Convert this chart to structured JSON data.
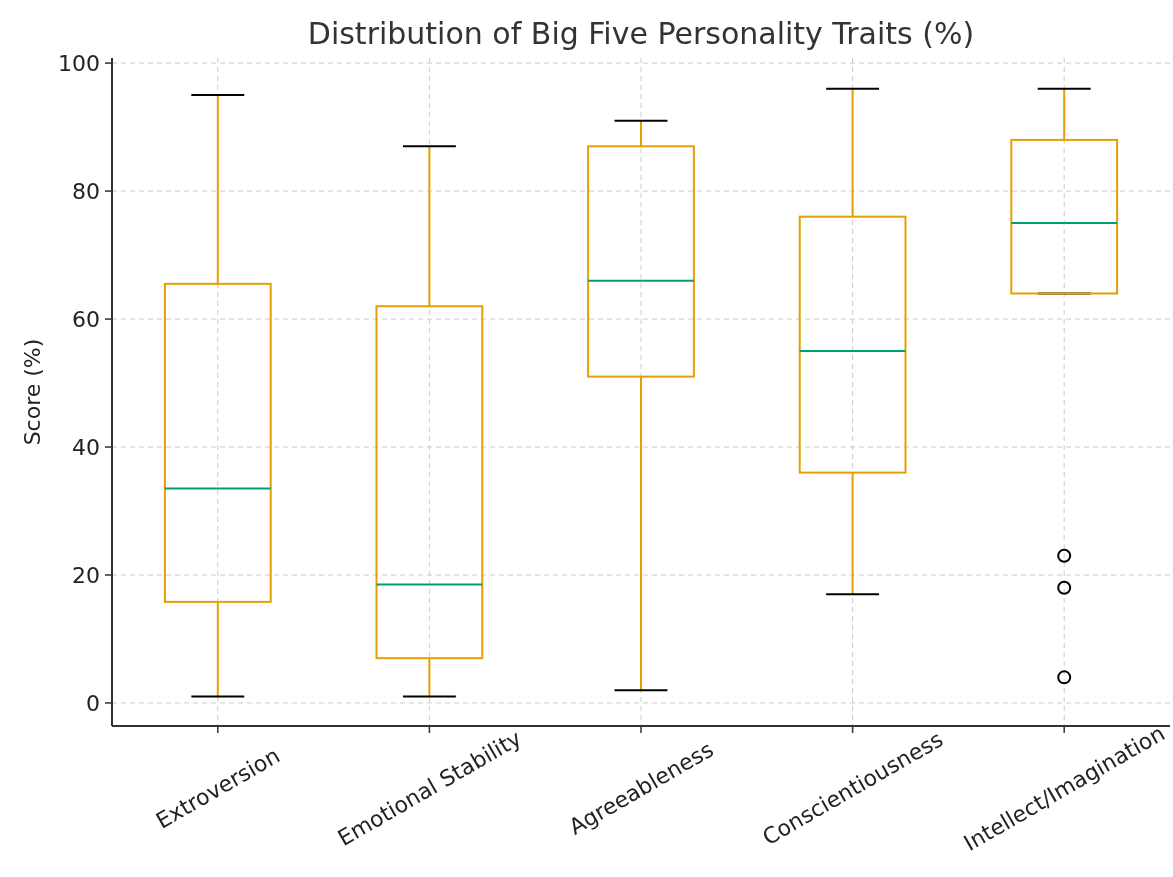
{
  "chart_data": {
    "type": "box",
    "title": "Distribution of Big Five Personality Traits (%)",
    "ylabel": "Score (%)",
    "categories": [
      "Extroversion",
      "Emotional Stability",
      "Agreeableness",
      "Conscientiousness",
      "Intellect/Imagination"
    ],
    "boxes": [
      {
        "low": 1,
        "q1": 15.8,
        "median": 33.5,
        "q3": 65.5,
        "high": 95
      },
      {
        "low": 1,
        "q1": 7,
        "median": 18.5,
        "q3": 62,
        "high": 87
      },
      {
        "low": 2,
        "q1": 51,
        "median": 66,
        "q3": 87,
        "high": 91
      },
      {
        "low": 17,
        "q1": 36,
        "median": 55,
        "q3": 76,
        "high": 96
      },
      {
        "low": 64,
        "q1": 64,
        "median": 75,
        "q3": 88,
        "high": 96,
        "outliers": [
          23,
          18,
          4
        ]
      }
    ],
    "color": "#e69f00",
    "ylim": [
      -3.6,
      100.8
    ],
    "yticks": [
      0,
      20,
      40,
      60,
      80,
      100
    ],
    "grid": true
  }
}
